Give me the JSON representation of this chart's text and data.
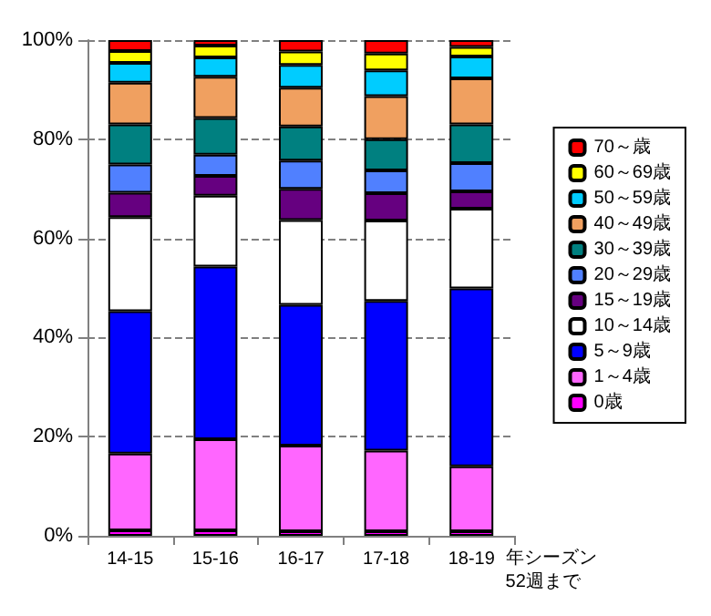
{
  "chart_data": {
    "type": "bar",
    "stacked": true,
    "categories": [
      "14-15",
      "15-16",
      "16-17",
      "17-18",
      "18-19"
    ],
    "xlabel": "年シーズン\n52週まで",
    "series": [
      {
        "name": "0歳",
        "color": "#ff00ff",
        "values": [
          1.1,
          1.1,
          0.9,
          0.9,
          0.9
        ]
      },
      {
        "name": "1～4歳",
        "color": "#ff66ff",
        "values": [
          15.5,
          18.4,
          17.3,
          16.3,
          13.1
        ]
      },
      {
        "name": "5～9歳",
        "color": "#0000ff",
        "values": [
          28.7,
          34.8,
          28.4,
          30.2,
          35.9
        ]
      },
      {
        "name": "10～14歳",
        "color": "#ffffff",
        "values": [
          19.0,
          14.3,
          17.1,
          16.2,
          16.1
        ]
      },
      {
        "name": "15～19歳",
        "color": "#660080",
        "values": [
          4.9,
          4.0,
          6.3,
          5.5,
          3.5
        ]
      },
      {
        "name": "20～29歳",
        "color": "#5080ff",
        "values": [
          5.7,
          4.3,
          5.7,
          4.6,
          5.7
        ]
      },
      {
        "name": "30～39歳",
        "color": "#008080",
        "values": [
          8.1,
          7.4,
          6.9,
          6.3,
          7.8
        ]
      },
      {
        "name": "40～49歳",
        "color": "#f0a060",
        "values": [
          8.4,
          8.3,
          7.8,
          8.7,
          9.3
        ]
      },
      {
        "name": "50～59歳",
        "color": "#00ccff",
        "values": [
          4.0,
          3.9,
          4.6,
          5.2,
          4.4
        ]
      },
      {
        "name": "60～69歳",
        "color": "#ffff00",
        "values": [
          2.4,
          2.4,
          2.7,
          3.4,
          1.9
        ]
      },
      {
        "name": "70～歳",
        "color": "#ff0000",
        "values": [
          2.2,
          1.1,
          2.3,
          2.7,
          1.4
        ]
      }
    ],
    "ylim": [
      0,
      100
    ],
    "yticks": [
      {
        "value": 0,
        "label": "0%"
      },
      {
        "value": 20,
        "label": "20%"
      },
      {
        "value": 40,
        "label": "40%"
      },
      {
        "value": 60,
        "label": "60%"
      },
      {
        "value": 80,
        "label": "80%"
      },
      {
        "value": 100,
        "label": "100%"
      }
    ],
    "grid": "y",
    "legend": "right"
  }
}
